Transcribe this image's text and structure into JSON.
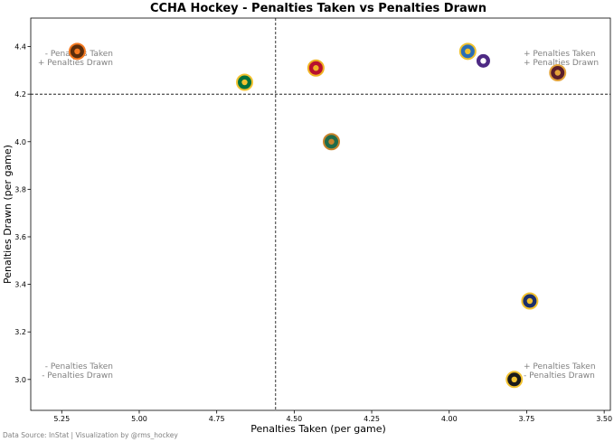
{
  "chart_data": {
    "type": "scatter",
    "title": "CCHA Hockey - Penalties Taken vs Penalties Drawn",
    "xlabel": "Penalties Taken (per game)",
    "ylabel": "Penalties Drawn (per game)",
    "xlim": [
      5.35,
      3.48
    ],
    "ylim": [
      2.87,
      4.52
    ],
    "x_inverted": true,
    "xticks": [
      5.25,
      5.0,
      4.75,
      4.5,
      4.25,
      4.0,
      3.75,
      3.5
    ],
    "xtick_labels": [
      "5.25",
      "5.00",
      "4.75",
      "4.50",
      "4.25",
      "4.00",
      "3.75",
      "3.50"
    ],
    "yticks": [
      3.0,
      3.2,
      3.4,
      3.6,
      3.8,
      4.0,
      4.2,
      4.4
    ],
    "ytick_labels": [
      "3.0",
      "3.2",
      "3.4",
      "3.6",
      "3.8",
      "4.0",
      "4.2",
      "4.4"
    ],
    "reference_lines": {
      "x": 4.56,
      "y": 4.2
    },
    "points": [
      {
        "x": 5.2,
        "y": 4.38,
        "logo_color": "#5a2d0c",
        "logo_accent": "#f47920"
      },
      {
        "x": 4.66,
        "y": 4.25,
        "logo_color": "#00703c",
        "logo_accent": "#f2c230"
      },
      {
        "x": 4.43,
        "y": 4.31,
        "logo_color": "#b8112e",
        "logo_accent": "#f0b323"
      },
      {
        "x": 4.38,
        "y": 4.0,
        "logo_color": "#1f6b4a",
        "logo_accent": "#c8842c"
      },
      {
        "x": 3.94,
        "y": 4.38,
        "logo_color": "#2a6db5",
        "logo_accent": "#f0c22e"
      },
      {
        "x": 3.89,
        "y": 4.34,
        "logo_color": "#4e2a84",
        "logo_accent": "#ffffff"
      },
      {
        "x": 3.65,
        "y": 4.29,
        "logo_color": "#5a1e2a",
        "logo_accent": "#e2a23a"
      },
      {
        "x": 3.74,
        "y": 3.33,
        "logo_color": "#1c2f6b",
        "logo_accent": "#f2c230"
      },
      {
        "x": 3.79,
        "y": 3.0,
        "logo_color": "#1a1a1a",
        "logo_accent": "#f2c230"
      }
    ],
    "annotations": {
      "top_left": [
        "- Penalties Taken",
        "+ Penalties Drawn"
      ],
      "top_right": [
        "+ Penalties Taken",
        "+ Penalties Drawn"
      ],
      "bottom_left": [
        "- Penalties Taken",
        "- Penalties Drawn"
      ],
      "bottom_right": [
        "+ Penalties Taken",
        "- Penalties Drawn"
      ]
    },
    "grid": false,
    "source_note": "Data Source: InStat | Visualization by @rms_hockey"
  }
}
